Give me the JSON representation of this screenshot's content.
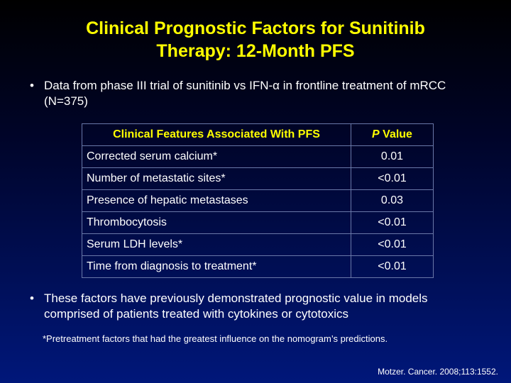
{
  "slide": {
    "title_line1": "Clinical Prognostic Factors for Sunitinib",
    "title_line2": "Therapy: 12-Month PFS",
    "bullet1": "Data from phase III trial of sunitinib vs IFN-α in frontline treatment of mRCC (N=375)",
    "bullet2": "These factors have previously demonstrated prognostic value in models comprised of patients treated with cytokines or cytotoxics",
    "bullet_glyph": "•",
    "table": {
      "header_feature": "Clinical Features Associated With PFS",
      "header_p_italic": "P",
      "header_p_rest": " Value",
      "rows": [
        {
          "feature": "Corrected serum calcium*",
          "p": "0.01"
        },
        {
          "feature": "Number of metastatic sites*",
          "p": "<0.01"
        },
        {
          "feature": "Presence of hepatic metastases",
          "p": "0.03"
        },
        {
          "feature": "Thrombocytosis",
          "p": "<0.01"
        },
        {
          "feature": "Serum LDH levels*",
          "p": "<0.01"
        },
        {
          "feature": "Time from diagnosis to treatment*",
          "p": "<0.01"
        }
      ]
    },
    "footnote": "*Pretreatment factors that had the greatest influence on the nomogram’s predictions.",
    "citation": "Motzer. Cancer. 2008;113:1552."
  },
  "colors": {
    "title": "#ffff00",
    "text": "#ffffff",
    "background_top": "#000000",
    "background_bottom": "#00177a",
    "table_border": "#6a78a8"
  }
}
